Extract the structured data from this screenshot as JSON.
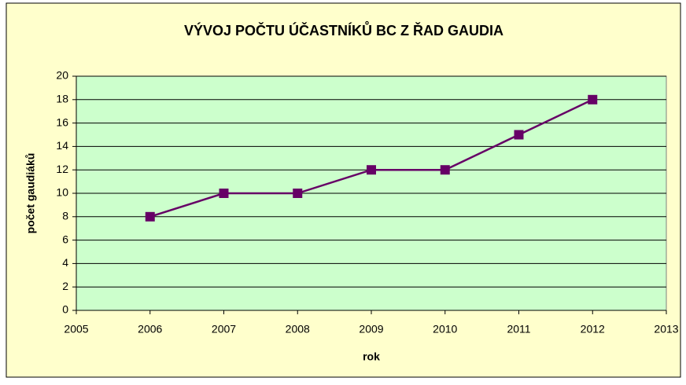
{
  "chart_data": {
    "type": "line",
    "title": "VÝVOJ POČTU ÚČASTNÍKŮ BC Z ŘAD GAUDIA",
    "xlabel": "rok",
    "ylabel": "počet gaudiáků",
    "x": [
      2006,
      2007,
      2008,
      2009,
      2010,
      2011,
      2012
    ],
    "series": [
      {
        "name": "počet gaudiáků",
        "color": "#660066",
        "values": [
          8,
          10,
          10,
          12,
          12,
          15,
          18
        ]
      }
    ],
    "xlim": [
      2005,
      2013
    ],
    "xticks": [
      2005,
      2006,
      2007,
      2008,
      2009,
      2010,
      2011,
      2012,
      2013
    ],
    "ylim": [
      0,
      20
    ],
    "yticks": [
      0,
      2,
      4,
      6,
      8,
      10,
      12,
      14,
      16,
      18,
      20
    ],
    "grid": true,
    "background": "#ffffcc",
    "plot_background": "#ccffcc"
  }
}
